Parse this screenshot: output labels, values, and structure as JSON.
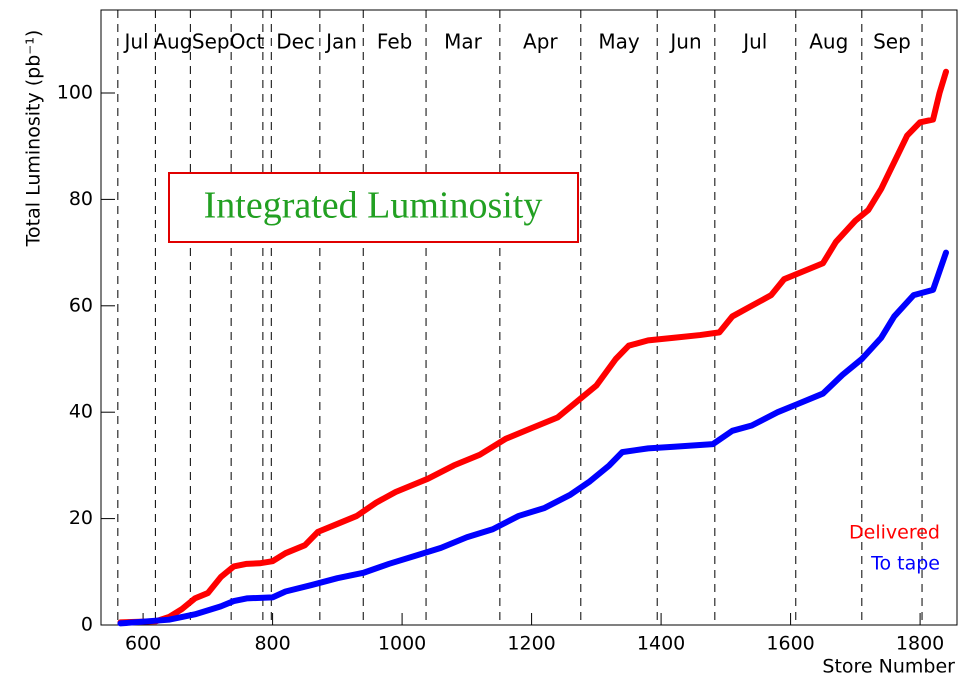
{
  "chart_data": {
    "type": "line",
    "title": "Integrated Luminosity",
    "x_label": "Store Number",
    "y_label": "Total Luminosity (pb⁻¹)",
    "xlim": [
      535,
      1857
    ],
    "ylim": [
      0,
      115.6
    ],
    "xticks": [
      600,
      800,
      1000,
      1200,
      1400,
      1600,
      1800
    ],
    "yticks": [
      0,
      20,
      40,
      60,
      80,
      100
    ],
    "month_lines": [
      561,
      619,
      673,
      736,
      785,
      798,
      873,
      940,
      1037,
      1151,
      1276,
      1394,
      1483,
      1608,
      1710,
      1803
    ],
    "month_labels": [
      "Jul",
      "Aug",
      "Sep",
      "Oct",
      null,
      "Dec",
      "Jan",
      "Feb",
      "Mar",
      "Apr",
      "May",
      "Jun",
      "Jul",
      "Aug",
      "Sep",
      null
    ],
    "series": [
      {
        "name": "Delivered",
        "color": "#ff0000",
        "x": [
          565,
          620,
          640,
          660,
          680,
          700,
          720,
          740,
          760,
          780,
          800,
          820,
          850,
          870,
          900,
          930,
          960,
          990,
          1020,
          1040,
          1080,
          1120,
          1160,
          1200,
          1240,
          1270,
          1300,
          1330,
          1350,
          1380,
          1420,
          1460,
          1490,
          1510,
          1540,
          1570,
          1590,
          1620,
          1650,
          1670,
          1700,
          1720,
          1740,
          1760,
          1780,
          1800,
          1820,
          1830,
          1840
        ],
        "values": [
          0.5,
          0.7,
          1.5,
          3,
          5,
          6,
          9,
          11,
          11.5,
          11.6,
          12,
          13.5,
          15,
          17.5,
          19,
          20.5,
          23,
          25,
          26.5,
          27.5,
          30,
          32,
          35,
          37,
          39,
          42,
          45,
          50,
          52.5,
          53.5,
          54,
          54.5,
          55,
          58,
          60,
          62,
          65,
          66.5,
          68,
          72,
          76,
          78,
          82,
          87,
          92,
          94.5,
          95,
          100,
          104
        ]
      },
      {
        "name": "To tape",
        "color": "#0000ff",
        "x": [
          565,
          640,
          680,
          720,
          740,
          760,
          800,
          820,
          860,
          900,
          940,
          980,
          1020,
          1060,
          1100,
          1140,
          1180,
          1220,
          1260,
          1290,
          1320,
          1340,
          1380,
          1420,
          1480,
          1510,
          1540,
          1580,
          1610,
          1650,
          1680,
          1710,
          1740,
          1760,
          1790,
          1820,
          1840
        ],
        "values": [
          0.3,
          1,
          2,
          3.5,
          4.5,
          5,
          5.2,
          6.3,
          7.5,
          8.8,
          9.8,
          11.5,
          13,
          14.5,
          16.5,
          18,
          20.5,
          22,
          24.5,
          27,
          30,
          32.5,
          33.2,
          33.5,
          34,
          36.5,
          37.5,
          40,
          41.5,
          43.5,
          47,
          50,
          54,
          58,
          62,
          63,
          70
        ]
      }
    ]
  }
}
